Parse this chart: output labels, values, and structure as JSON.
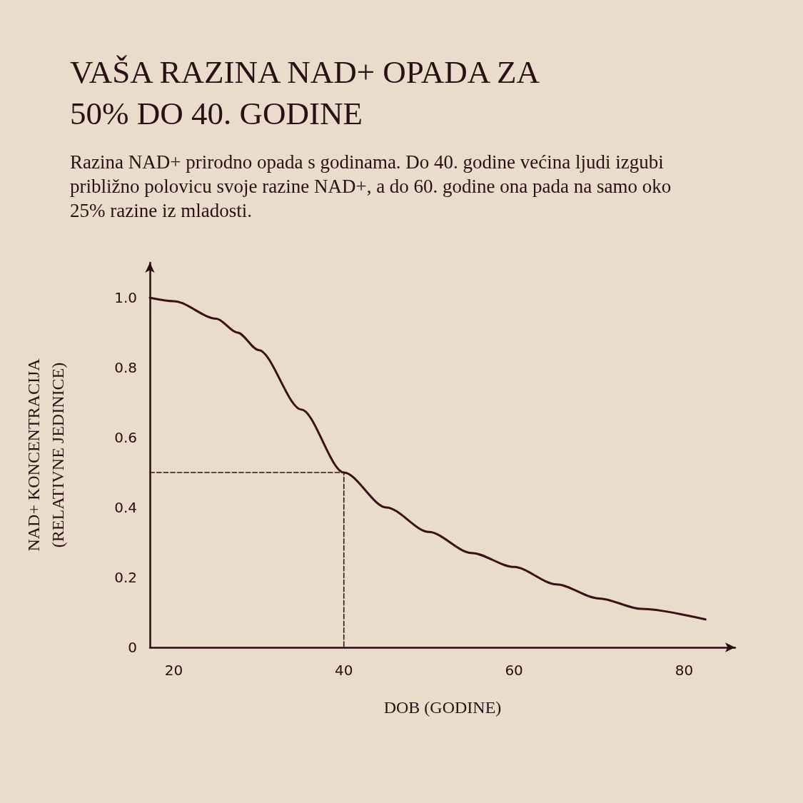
{
  "chart_data": {
    "type": "line",
    "title": "VAŠA RAZINA NAD+ OPADA ZA 50% DO 40. GODINE",
    "subtitle": "Razina NAD+ prirodno opada s godinama. Do 40. godine većina ljudi izgubi približno polovicu svoje razine NAD+, a do 60. godine ona pada na samo oko 25% razine iz mladosti.",
    "xlabel": "DOB (GODINE)",
    "ylabel": "NAD+ KONCENTRACIJA (RELATIVNE JEDINICE)",
    "series": [
      {
        "color": "#3d0f17",
        "line_style": "solid",
        "x": [
          17.2,
          20,
          25,
          27.5,
          30,
          35,
          40,
          45,
          50,
          55,
          60,
          65,
          70,
          75,
          82.5
        ],
        "values": [
          1.0,
          0.99,
          0.94,
          0.9,
          0.85,
          0.68,
          0.5,
          0.4,
          0.33,
          0.27,
          0.23,
          0.18,
          0.14,
          0.11,
          0.08
        ]
      },
      {
        "color": "#3d0f17",
        "line_style": "dashed",
        "x": [
          17.2,
          40,
          40
        ],
        "values": [
          0.5,
          0.5,
          0
        ]
      }
    ],
    "xlim": [
      17.2,
      86
    ],
    "ylim": [
      0,
      1.1
    ],
    "xticks": [
      20,
      40,
      60,
      80
    ],
    "yticks": [
      0,
      0.2,
      0.4,
      0.6,
      0.8,
      {
        "value": 1,
        "label": "1.0"
      }
    ],
    "grid": false,
    "marker": "none"
  }
}
